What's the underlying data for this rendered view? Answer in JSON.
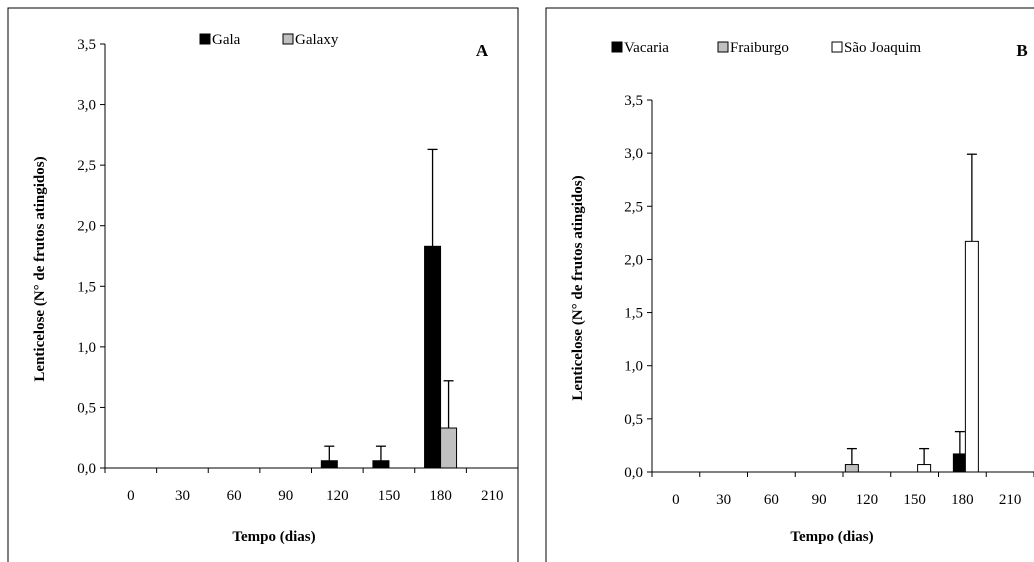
{
  "chart_data": [
    {
      "type": "bar",
      "panel_label": "A",
      "xlabel": "Tempo (dias)",
      "ylabel": "Lenticelose (N° de frutos atingidos)",
      "ylim": [
        0,
        3.5
      ],
      "yticks": [
        "0,0",
        "0,5",
        "1,0",
        "1,5",
        "2,0",
        "2,5",
        "3,0",
        "3,5"
      ],
      "categories": [
        "0",
        "30",
        "60",
        "90",
        "120",
        "150",
        "180",
        "210"
      ],
      "legend_position": "top",
      "series": [
        {
          "name": "Gala",
          "color": "#000000",
          "values": [
            0,
            0,
            0,
            0,
            0.06,
            0.06,
            1.83,
            0
          ],
          "errors": [
            0,
            0,
            0,
            0,
            0.12,
            0.12,
            0.8,
            0
          ]
        },
        {
          "name": "Galaxy",
          "color": "#c0c0c0",
          "values": [
            0,
            0,
            0,
            0,
            0,
            0,
            0.33,
            0
          ],
          "errors": [
            0,
            0,
            0,
            0,
            0,
            0,
            0.39,
            0
          ]
        }
      ]
    },
    {
      "type": "bar",
      "panel_label": "B",
      "xlabel": "Tempo (dias)",
      "ylabel": "Lenticelose (N° de frutos atingidos)",
      "ylim": [
        0,
        3.5
      ],
      "yticks": [
        "0,0",
        "0,5",
        "1,0",
        "1,5",
        "2,0",
        "2,5",
        "3,0",
        "3,5"
      ],
      "categories": [
        "0",
        "30",
        "60",
        "90",
        "120",
        "150",
        "180",
        "210"
      ],
      "legend_position": "top",
      "series": [
        {
          "name": "Vacaria",
          "color": "#000000",
          "values": [
            0,
            0,
            0,
            0,
            0,
            0,
            0.17,
            0
          ],
          "errors": [
            0,
            0,
            0,
            0,
            0,
            0,
            0.21,
            0
          ]
        },
        {
          "name": "Fraiburgo",
          "color": "#c0c0c0",
          "values": [
            0,
            0,
            0,
            0,
            0.07,
            0,
            0,
            0
          ],
          "errors": [
            0,
            0,
            0,
            0,
            0.15,
            0,
            0,
            0
          ]
        },
        {
          "name": "São Joaquim",
          "color": "#ffffff",
          "values": [
            0,
            0,
            0,
            0,
            0,
            0.07,
            2.17,
            0
          ],
          "errors": [
            0,
            0,
            0,
            0,
            0,
            0.15,
            0.82,
            0
          ]
        }
      ]
    }
  ]
}
